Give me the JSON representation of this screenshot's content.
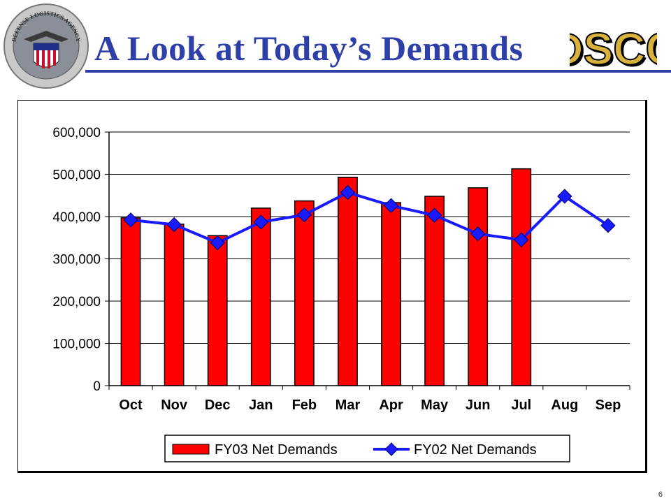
{
  "slide": {
    "title": "A Look at Today’s Demands",
    "logo_text": "DSCC",
    "seal_text": "DEFENSE LOGISTICS AGENCY",
    "page_number": "6"
  },
  "colors": {
    "title": "#2f3fa8",
    "bar": "#ff0000",
    "line": "#1a1aff",
    "logo_fill": "#d8b23c"
  },
  "chart_data": {
    "type": "bar",
    "categories": [
      "Oct",
      "Nov",
      "Dec",
      "Jan",
      "Feb",
      "Mar",
      "Apr",
      "May",
      "Jun",
      "Jul",
      "Aug",
      "Sep"
    ],
    "ylim": [
      0,
      600000
    ],
    "yticks": [
      0,
      100000,
      200000,
      300000,
      400000,
      500000,
      600000
    ],
    "ytick_labels": [
      "0",
      "100,000",
      "200,000",
      "300,000",
      "400,000",
      "500,000",
      "600,000"
    ],
    "grid": true,
    "legend_position": "bottom",
    "series": [
      {
        "name": "FY03 Net Demands",
        "type": "bar",
        "color": "#ff0000",
        "values": [
          397000,
          382000,
          355000,
          420000,
          437000,
          493000,
          433000,
          448000,
          468000,
          513000,
          null,
          null
        ]
      },
      {
        "name": "FY02 Net Demands",
        "type": "line",
        "marker": "diamond",
        "color": "#1a1aff",
        "values": [
          392000,
          381000,
          338000,
          387000,
          404000,
          457000,
          426000,
          403000,
          359000,
          345000,
          448000,
          379000
        ]
      }
    ]
  }
}
